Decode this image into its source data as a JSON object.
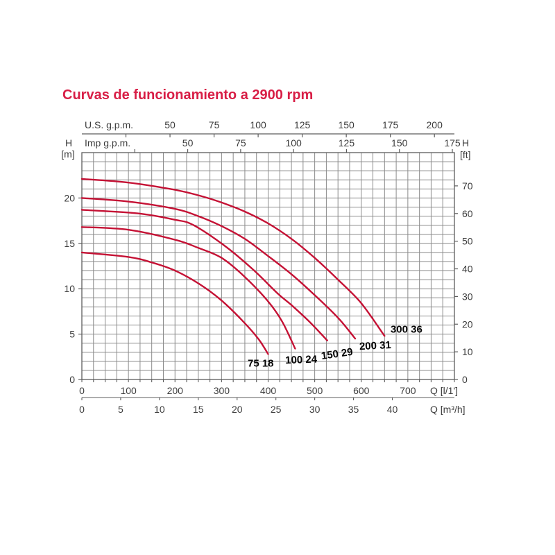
{
  "title": "Curvas de funcionamiento a 2900 rpm",
  "colors": {
    "title": "#d81e46",
    "curve": "#c51235",
    "grid": "#8a8a8a",
    "frame": "#5c5c5c",
    "text": "#3c3c3c",
    "curve_label": "#050505",
    "background": "#ffffff"
  },
  "chart_data": {
    "type": "line",
    "title": "Curvas de funcionamiento a 2900 rpm",
    "grid": "on",
    "x_axis_bottom": {
      "label": "Q [l/1']",
      "range": [
        0,
        800
      ],
      "labeled_ticks": [
        0,
        100,
        200,
        300,
        400,
        500,
        600,
        700
      ],
      "minor_tick_step": 25
    },
    "x_axis_bottom_2": {
      "label": "Q [m³/h]",
      "l_per_unit": 16.6667,
      "labeled_ticks": [
        0,
        5,
        10,
        15,
        20,
        25,
        30,
        35,
        40
      ]
    },
    "x_axis_top_us": {
      "label": "U.S. g.p.m.",
      "l_per_unit": 3.7854,
      "ticks": [
        25,
        50,
        75,
        100,
        125,
        150,
        175,
        200
      ],
      "labeled_ticks": [
        50,
        75,
        100,
        125,
        150,
        175,
        200
      ]
    },
    "x_axis_top_imp": {
      "label": "Imp g.p.m.",
      "l_per_unit": 4.5461,
      "ticks": [
        25,
        50,
        75,
        100,
        125,
        150,
        175
      ],
      "labeled_ticks": [
        50,
        75,
        100,
        125,
        150,
        175
      ]
    },
    "y_axis_left": {
      "label_letter": "H",
      "label_unit": "[m]",
      "range": [
        0,
        25
      ],
      "labeled_ticks": [
        0,
        5,
        10,
        15,
        20
      ],
      "minor_grid_step": 1
    },
    "y_axis_right": {
      "label_letter": "H",
      "label_unit": "[ft]",
      "m_per_unit": 0.3048,
      "labeled_ticks": [
        0,
        10,
        20,
        30,
        40,
        50,
        60,
        70
      ]
    },
    "series": [
      {
        "name": "75 18",
        "label_at": [
          384,
          1.75
        ],
        "label_rotation": 0,
        "points": [
          [
            0,
            14
          ],
          [
            100,
            13.5
          ],
          [
            150,
            12.9
          ],
          [
            200,
            12.0
          ],
          [
            250,
            10.6
          ],
          [
            300,
            8.7
          ],
          [
            350,
            6.2
          ],
          [
            380,
            4.4
          ],
          [
            400,
            2.8
          ]
        ]
      },
      {
        "name": "100 24",
        "label_at": [
          471,
          2.15
        ],
        "label_rotation": -2,
        "points": [
          [
            0,
            16.8
          ],
          [
            100,
            16.5
          ],
          [
            200,
            15.4
          ],
          [
            250,
            14.5
          ],
          [
            300,
            13.4
          ],
          [
            350,
            11.3
          ],
          [
            400,
            8.6
          ],
          [
            430,
            6.4
          ],
          [
            458,
            3.4
          ]
        ]
      },
      {
        "name": "150 29",
        "label_at": [
          548,
          2.8
        ],
        "label_rotation": -8,
        "points": [
          [
            0,
            18.7
          ],
          [
            120,
            18.3
          ],
          [
            200,
            17.6
          ],
          [
            240,
            17.0
          ],
          [
            310,
            14.6
          ],
          [
            370,
            12.0
          ],
          [
            420,
            9.5
          ],
          [
            450,
            8.2
          ],
          [
            490,
            6.3
          ],
          [
            527,
            4.3
          ]
        ]
      },
      {
        "name": "200 31",
        "label_at": [
          630,
          3.7
        ],
        "label_rotation": -3,
        "points": [
          [
            0,
            20.0
          ],
          [
            100,
            19.6
          ],
          [
            200,
            18.8
          ],
          [
            250,
            18.0
          ],
          [
            300,
            16.9
          ],
          [
            350,
            15.5
          ],
          [
            400,
            13.6
          ],
          [
            450,
            11.6
          ],
          [
            500,
            9.3
          ],
          [
            550,
            6.8
          ],
          [
            587,
            4.5
          ]
        ]
      },
      {
        "name": "300 36",
        "label_at": [
          697,
          5.5
        ],
        "label_rotation": 0,
        "points": [
          [
            0,
            22.1
          ],
          [
            100,
            21.7
          ],
          [
            200,
            20.9
          ],
          [
            250,
            20.3
          ],
          [
            300,
            19.5
          ],
          [
            350,
            18.5
          ],
          [
            400,
            17.2
          ],
          [
            450,
            15.5
          ],
          [
            500,
            13.4
          ],
          [
            550,
            11.0
          ],
          [
            600,
            8.4
          ],
          [
            650,
            4.8
          ]
        ]
      }
    ]
  }
}
